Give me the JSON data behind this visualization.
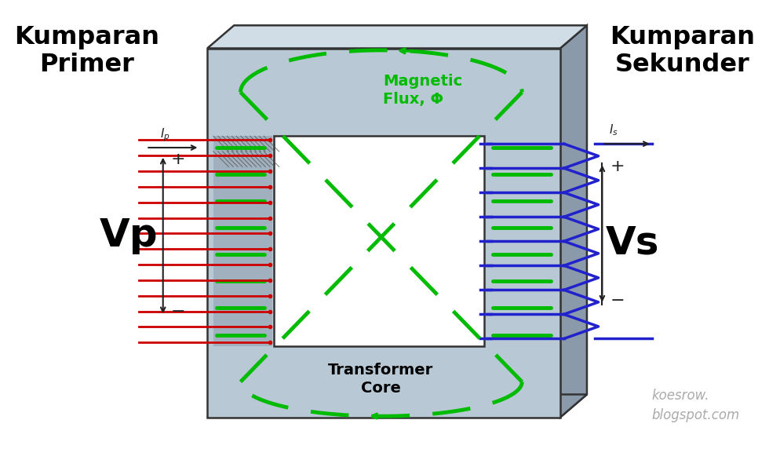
{
  "bg_color": "#ffffff",
  "core_front_color": "#b8c8d4",
  "core_top_color": "#d0dce6",
  "core_right_color": "#8a9aaa",
  "core_edge_color": "#333333",
  "coil_left_color": "#8a9aaa",
  "hole_inner_color": "#dce8f0",
  "primary_label": "Kumparan\nPrimer",
  "secondary_label": "Kumparan\nSekunder",
  "flux_label": "Magnetic\nFlux, Φ",
  "core_label": "Transformer\nCore",
  "vp_label": "Vp",
  "vs_label": "Vs",
  "ip_label": "Iₚ",
  "is_label": "Iₛ",
  "green_color": "#00bb00",
  "red_color": "#cc0000",
  "blue_color": "#2222cc",
  "dark_color": "#222222",
  "watermark_color": "#aaaaaa",
  "watermark": "koesrow.\nblogspot.com"
}
